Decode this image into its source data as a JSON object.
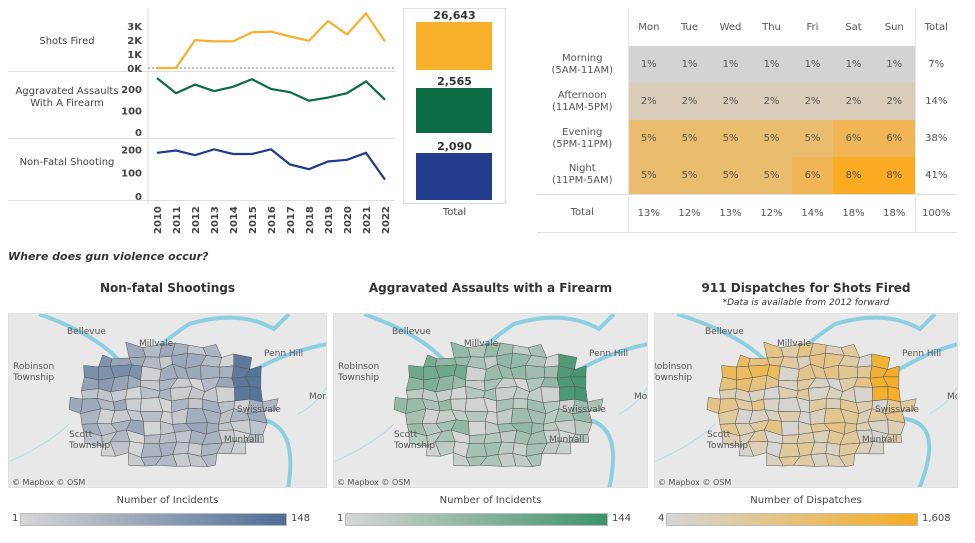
{
  "trend": {
    "rows": [
      {
        "label": "Shots Fired",
        "ticks": [
          "3K",
          "2K",
          "1K",
          "0K"
        ],
        "color": "#f5b02e"
      },
      {
        "label": "Aggravated Assaults With A Firearm",
        "ticks": [
          "200",
          "100",
          "0"
        ],
        "color": "#0b6b45"
      },
      {
        "label": "Non-Fatal Shooting",
        "ticks": [
          "200",
          "100",
          "0"
        ],
        "color": "#1f3b8c"
      }
    ],
    "totals": [
      {
        "value": "26,643",
        "color": "#f9b02a"
      },
      {
        "value": "2,565",
        "color": "#0b6b45"
      },
      {
        "value": "2,090",
        "color": "#233c8e"
      }
    ],
    "total_label": "Total"
  },
  "chart_data": {
    "type": "line",
    "x": [
      "2010",
      "2011",
      "2012",
      "2013",
      "2014",
      "2015",
      "2016",
      "2017",
      "2018",
      "2019",
      "2020",
      "2021",
      "2022"
    ],
    "series": [
      {
        "name": "Shots Fired",
        "values": [
          0,
          0,
          2000,
          1900,
          1900,
          2550,
          2600,
          2250,
          1950,
          3350,
          2400,
          3900,
          1900
        ],
        "ylim": [
          0,
          4000
        ]
      },
      {
        "name": "Aggravated Assaults With A Firearm",
        "values": [
          250,
          180,
          220,
          190,
          210,
          245,
          200,
          185,
          145,
          160,
          180,
          235,
          150
        ],
        "ylim": [
          0,
          260
        ]
      },
      {
        "name": "Non-Fatal Shooting",
        "values": [
          185,
          195,
          175,
          200,
          180,
          180,
          200,
          135,
          115,
          148,
          155,
          185,
          70
        ],
        "ylim": [
          0,
          210
        ]
      }
    ]
  },
  "heatmap": {
    "columns": [
      "Mon",
      "Tue",
      "Wed",
      "Thu",
      "Fri",
      "Sat",
      "Sun",
      "Total"
    ],
    "rows": [
      {
        "label": [
          "Morning",
          "(5AM-11AM)"
        ],
        "values": [
          1,
          1,
          1,
          1,
          1,
          1,
          1
        ],
        "total": "7%"
      },
      {
        "label": [
          "Afternoon",
          "(11AM-5PM)"
        ],
        "values": [
          2,
          2,
          2,
          2,
          2,
          2,
          2
        ],
        "total": "14%"
      },
      {
        "label": [
          "Evening",
          "(5PM-11PM)"
        ],
        "values": [
          5,
          5,
          5,
          5,
          5,
          6,
          6
        ],
        "total": "38%"
      },
      {
        "label": [
          "Night",
          "(11PM-5AM)"
        ],
        "values": [
          5,
          5,
          5,
          5,
          6,
          8,
          8
        ],
        "total": "41%"
      }
    ],
    "total_row": {
      "label": "Total",
      "values": [
        "13%",
        "12%",
        "13%",
        "12%",
        "14%",
        "18%",
        "18%",
        "100%"
      ]
    },
    "low_color": "#d3d3d3",
    "high_color": "#fbab22"
  },
  "section_title": "Where does gun violence occur?",
  "maps": [
    {
      "title": "Non-fatal Shootings",
      "subtitle": "",
      "legend_title": "Number of Incidents",
      "min": "1",
      "max": "148",
      "color": "#4e6d96"
    },
    {
      "title": "Aggravated Assaults with a Firearm",
      "subtitle": "",
      "legend_title": "Number of Incidents",
      "min": "1",
      "max": "144",
      "color": "#3d9368"
    },
    {
      "title": "911 Dispatches for Shots Fired",
      "subtitle": "*Data is available from 2012 forward",
      "legend_title": "Number of Dispatches",
      "min": "4",
      "max": "1,608",
      "color": "#f5ac1e"
    }
  ],
  "map_labels": [
    "Bellevue",
    "Millvale",
    "Penn Hill",
    "Robinson Township",
    "Swissvale",
    "Mor",
    "Scott Township",
    "Munhall"
  ],
  "attribution": "© Mapbox  © OSM"
}
